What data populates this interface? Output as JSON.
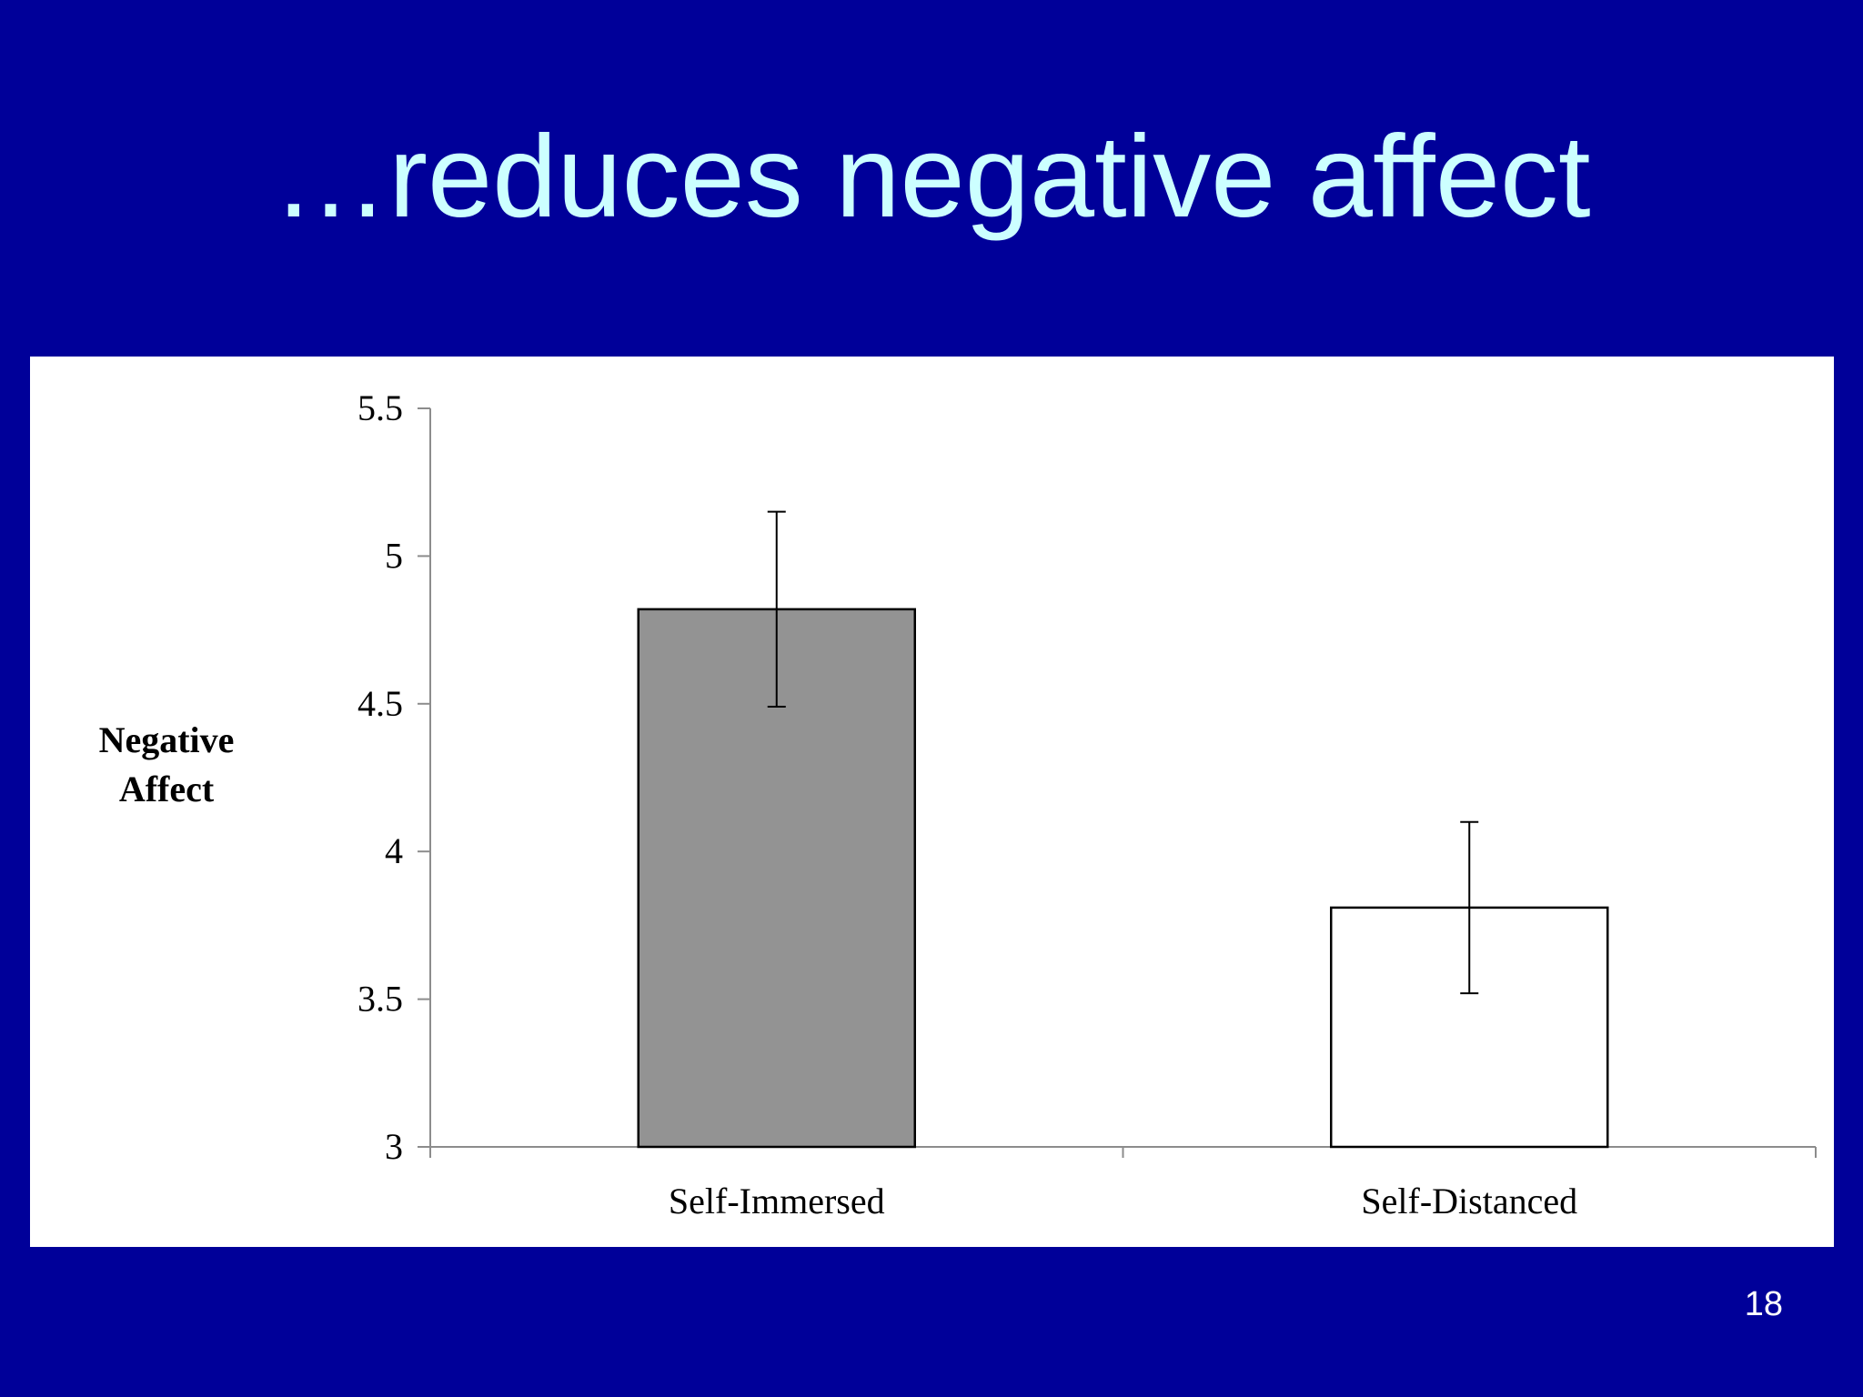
{
  "slide": {
    "title": "…reduces negative affect",
    "page_number": "18"
  },
  "chart_data": {
    "type": "bar",
    "title": "",
    "xlabel": "",
    "ylabel_lines": [
      "Negative",
      "Affect"
    ],
    "categories": [
      "Self-Immersed",
      "Self-Distanced"
    ],
    "values": [
      4.82,
      3.81
    ],
    "error_bars": [
      {
        "low": 4.49,
        "high": 5.15
      },
      {
        "low": 3.52,
        "high": 4.1
      }
    ],
    "bar_colors": [
      "#939393",
      "#ffffff"
    ],
    "ylim": [
      3,
      5.5
    ],
    "yticks": [
      3,
      3.5,
      4,
      4.5,
      5,
      5.5
    ],
    "ytick_labels": [
      "3",
      "3.5",
      "4",
      "4.5",
      "5",
      "5.5"
    ],
    "grid": false,
    "legend": "none"
  }
}
